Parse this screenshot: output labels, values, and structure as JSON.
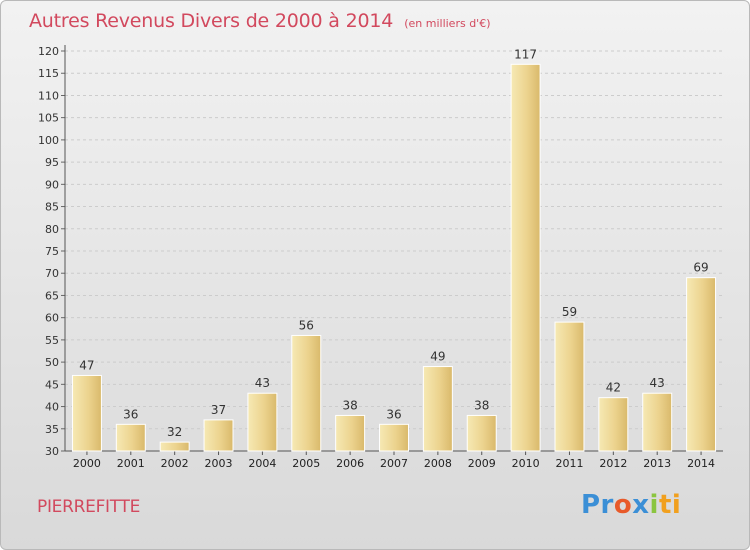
{
  "title": "Autres Revenus Divers de 2000 à 2014",
  "subtitle": "(en milliers d'€)",
  "town": "PIERREFITTE",
  "logo": {
    "p": "Pr",
    "o": "o",
    "x": "x",
    "i": "i",
    "t": "ti"
  },
  "colors": {
    "title": "#d2495e",
    "bar_light": "#f4e3a3",
    "bar_dark": "#d8b86a",
    "grid": "#c8c8c8"
  },
  "chart_data": {
    "type": "bar",
    "categories": [
      "2000",
      "2001",
      "2002",
      "2003",
      "2004",
      "2005",
      "2006",
      "2007",
      "2008",
      "2009",
      "2010",
      "2011",
      "2012",
      "2013",
      "2014"
    ],
    "values": [
      47,
      36,
      32,
      37,
      43,
      56,
      38,
      36,
      49,
      38,
      117,
      59,
      42,
      43,
      69
    ],
    "data_labels": [
      "47",
      "36",
      "32",
      "37",
      "43",
      "56",
      "38",
      "36",
      "49",
      "38",
      "117",
      "59",
      "42",
      "43",
      "69"
    ],
    "y_ticks": [
      "30",
      "35",
      "40",
      "45",
      "50",
      "55",
      "60",
      "65",
      "70",
      "75",
      "80",
      "85",
      "90",
      "95",
      "100",
      "105",
      "110",
      "115",
      "120"
    ],
    "ylim": [
      30,
      120
    ],
    "grid": true,
    "legend": "none"
  }
}
